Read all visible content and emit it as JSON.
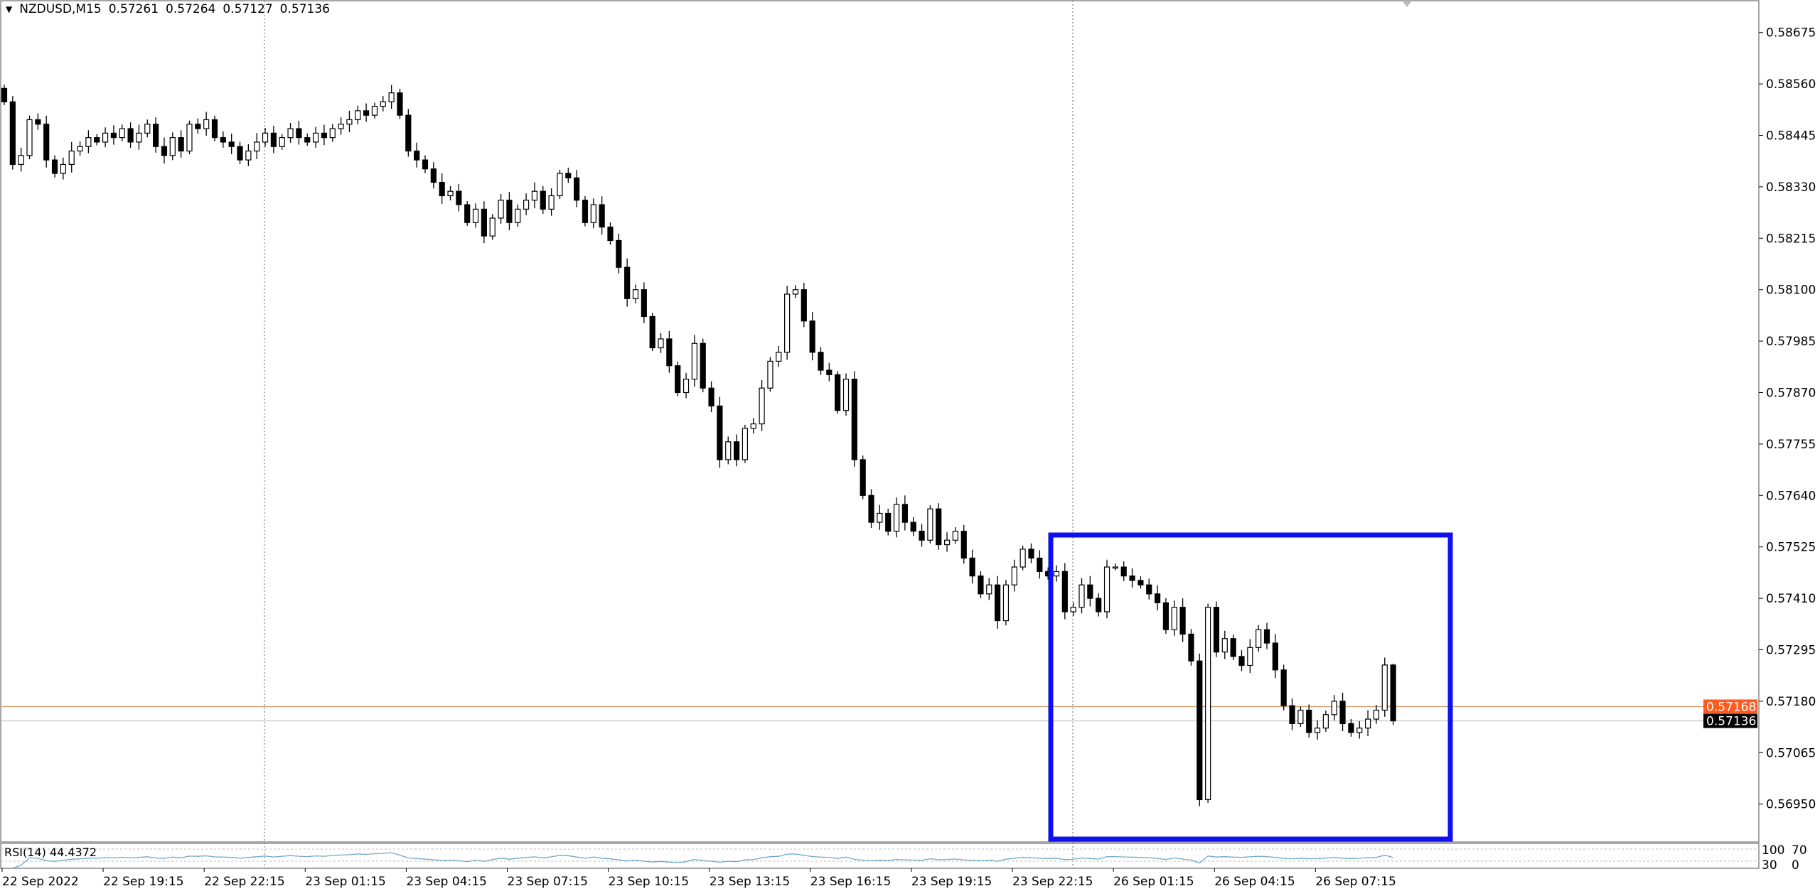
{
  "header": {
    "symbol": "NZDUSD,M15",
    "open": "0.57261",
    "high": "0.57264",
    "low": "0.57127",
    "close": "0.57136"
  },
  "indicator": {
    "label": "RSI(14) 44.4372",
    "levels": [
      "100",
      "70",
      "30",
      "0"
    ],
    "line_color": "#6fa8c8"
  },
  "price_axis": {
    "ticks": [
      "0.58675",
      "0.58560",
      "0.58445",
      "0.58330",
      "0.58215",
      "0.58100",
      "0.57985",
      "0.57870",
      "0.57755",
      "0.57640",
      "0.57525",
      "0.57410",
      "0.57295",
      "0.57180",
      "0.57065",
      "0.56950"
    ],
    "bid_label": "0.57136",
    "marker_label": "0.57168",
    "marker_color": "#ff5a1f"
  },
  "time_axis": {
    "labels": [
      "22 Sep 2022",
      "22 Sep 19:15",
      "22 Sep 22:15",
      "23 Sep 01:15",
      "23 Sep 04:15",
      "23 Sep 07:15",
      "23 Sep 10:15",
      "23 Sep 13:15",
      "23 Sep 16:15",
      "23 Sep 19:15",
      "23 Sep 22:15",
      "26 Sep 01:15",
      "26 Sep 04:15",
      "26 Sep 07:15"
    ]
  },
  "highlight_box_color": "#1010ee",
  "chart_data": {
    "type": "candlestick",
    "timeframe": "M15",
    "ylim": [
      0.569,
      0.5872
    ],
    "marker_level": 0.57168,
    "bid_level": 0.57136,
    "closes": [
      0.5852,
      0.5838,
      0.584,
      0.5848,
      0.5847,
      0.5839,
      0.5836,
      0.5838,
      0.5841,
      0.5842,
      0.5844,
      0.5843,
      0.5845,
      0.5844,
      0.5846,
      0.5843,
      0.5845,
      0.5847,
      0.5842,
      0.584,
      0.5844,
      0.5841,
      0.5847,
      0.5846,
      0.5848,
      0.5844,
      0.5843,
      0.5842,
      0.5839,
      0.5841,
      0.5843,
      0.5845,
      0.5842,
      0.5844,
      0.5846,
      0.5844,
      0.5843,
      0.5845,
      0.5844,
      0.5846,
      0.5847,
      0.5848,
      0.585,
      0.5849,
      0.5851,
      0.5852,
      0.5854,
      0.5849,
      0.5841,
      0.5839,
      0.5837,
      0.5834,
      0.5831,
      0.5832,
      0.5829,
      0.5825,
      0.5828,
      0.5822,
      0.5826,
      0.583,
      0.5825,
      0.5828,
      0.583,
      0.5832,
      0.5828,
      0.5831,
      0.5836,
      0.5835,
      0.583,
      0.5825,
      0.5829,
      0.5824,
      0.5821,
      0.5815,
      0.5808,
      0.581,
      0.5804,
      0.5797,
      0.5799,
      0.5793,
      0.5787,
      0.579,
      0.5798,
      0.5788,
      0.5784,
      0.5772,
      0.5776,
      0.5772,
      0.5779,
      0.578,
      0.5788,
      0.5794,
      0.5796,
      0.5809,
      0.581,
      0.5803,
      0.5796,
      0.5792,
      0.5791,
      0.5783,
      0.579,
      0.5772,
      0.5764,
      0.5758,
      0.576,
      0.5756,
      0.5762,
      0.5758,
      0.5756,
      0.5754,
      0.5761,
      0.5753,
      0.5754,
      0.5756,
      0.575,
      0.5746,
      0.5742,
      0.5744,
      0.5736,
      0.5744,
      0.5748,
      0.5752,
      0.575,
      0.5747,
      0.5746,
      0.5747,
      0.5738,
      0.5739,
      0.5744,
      0.5741,
      0.5738,
      0.5748,
      0.5748,
      0.5746,
      0.5745,
      0.5744,
      0.5742,
      0.574,
      0.5734,
      0.5739,
      0.5733,
      0.5727,
      0.5696,
      0.5739,
      0.5729,
      0.5732,
      0.5728,
      0.5726,
      0.573,
      0.5734,
      0.5731,
      0.5725,
      0.5717,
      0.5713,
      0.5716,
      0.5711,
      0.5712,
      0.5715,
      0.5718,
      0.5713,
      0.5711,
      0.5712,
      0.5714,
      0.5716,
      0.57261,
      0.57136
    ],
    "last_candle": {
      "open": 0.57261,
      "high": 0.57264,
      "low": 0.57127,
      "close": 0.57136
    }
  }
}
